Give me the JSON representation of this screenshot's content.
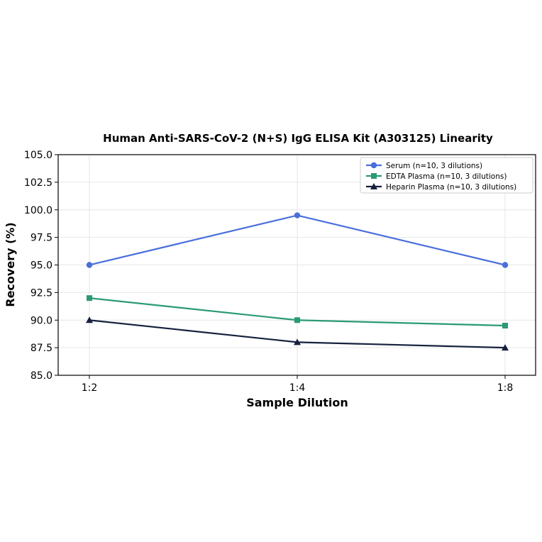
{
  "chart_data": {
    "type": "line",
    "title": "Human Anti-SARS-CoV-2 (N+S) IgG ELISA Kit (A303125) Linearity",
    "xlabel": "Sample Dilution",
    "ylabel": "Recovery (%)",
    "categories": [
      "1:2",
      "1:4",
      "1:8"
    ],
    "ylim": [
      85.0,
      105.0
    ],
    "yticks": [
      "85.0",
      "87.5",
      "90.0",
      "92.5",
      "95.0",
      "97.5",
      "100.0",
      "102.5",
      "105.0"
    ],
    "grid": true,
    "legend_position": "top-right",
    "series": [
      {
        "name": "Serum (n=10, 3 dilutions)",
        "values": [
          95.0,
          99.5,
          95.0
        ],
        "color": "#4a6fdc",
        "marker": "circle"
      },
      {
        "name": "EDTA Plasma (n=10, 3 dilutions)",
        "values": [
          92.0,
          90.0,
          89.5
        ],
        "color": "#2a9a73",
        "marker": "square"
      },
      {
        "name": "Heparin Plasma (n=10, 3 dilutions)",
        "values": [
          90.0,
          88.0,
          87.5
        ],
        "color": "#16213e",
        "marker": "triangle"
      }
    ]
  }
}
